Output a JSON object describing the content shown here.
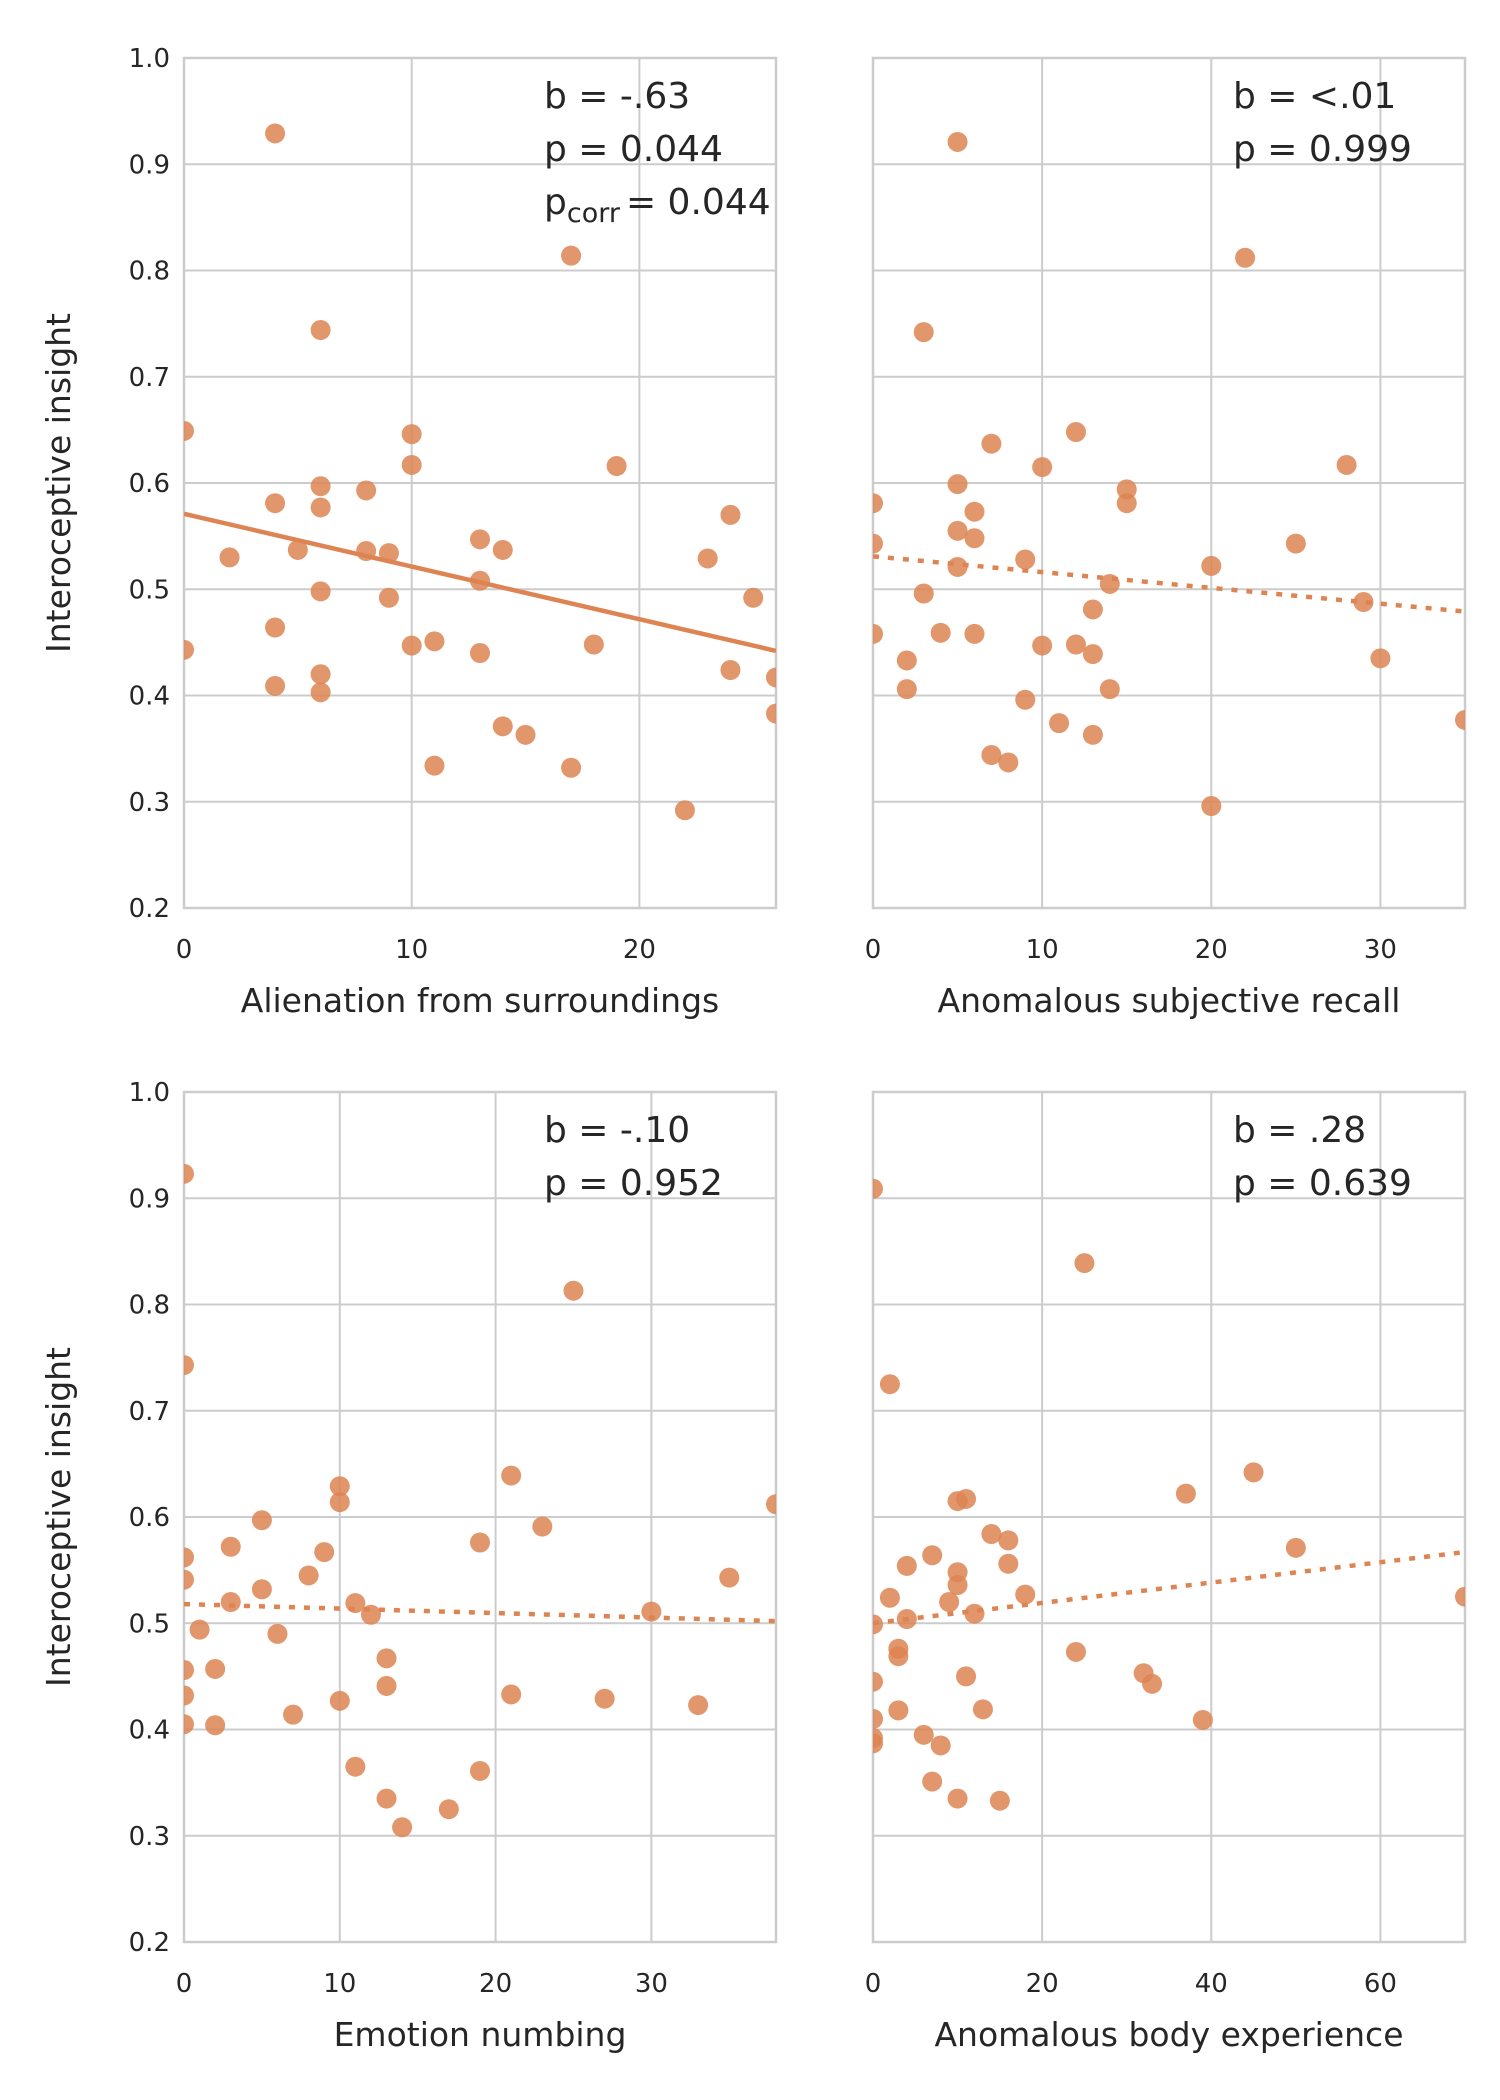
{
  "chart_data": [
    {
      "type": "scatter",
      "xlabel": "Alienation from surroundings",
      "ylabel": "Interoceptive insight",
      "xlim": [
        0,
        26
      ],
      "ylim": [
        0.2,
        1.0
      ],
      "xticks": [
        "0",
        "10",
        "20"
      ],
      "yticks": [
        "0.2",
        "0.3",
        "0.4",
        "0.5",
        "0.6",
        "0.7",
        "0.8",
        "0.9",
        "1.0"
      ],
      "annotation": {
        "b": "b = -.63",
        "p": "p = 0.044",
        "pcorr_sub": "corr",
        "pcorr_val": "= 0.044"
      },
      "fit": {
        "y_at_xmin": 0.571,
        "y_at_xmax": 0.442,
        "style": "solid"
      },
      "points": [
        [
          0,
          0.649
        ],
        [
          0,
          0.443
        ],
        [
          2,
          0.53
        ],
        [
          4,
          0.929
        ],
        [
          4,
          0.581
        ],
        [
          4,
          0.464
        ],
        [
          4,
          0.409
        ],
        [
          5,
          0.537
        ],
        [
          6,
          0.744
        ],
        [
          6,
          0.597
        ],
        [
          6,
          0.577
        ],
        [
          6,
          0.498
        ],
        [
          6,
          0.42
        ],
        [
          6,
          0.403
        ],
        [
          8,
          0.593
        ],
        [
          8,
          0.536
        ],
        [
          9,
          0.534
        ],
        [
          9,
          0.492
        ],
        [
          10,
          0.646
        ],
        [
          10,
          0.617
        ],
        [
          10,
          0.447
        ],
        [
          11,
          0.451
        ],
        [
          11,
          0.334
        ],
        [
          13,
          0.547
        ],
        [
          13,
          0.508
        ],
        [
          13,
          0.44
        ],
        [
          14,
          0.537
        ],
        [
          14,
          0.371
        ],
        [
          15,
          0.363
        ],
        [
          17,
          0.814
        ],
        [
          17,
          0.332
        ],
        [
          18,
          0.448
        ],
        [
          19,
          0.616
        ],
        [
          22,
          0.292
        ],
        [
          23,
          0.529
        ],
        [
          24,
          0.57
        ],
        [
          24,
          0.424
        ],
        [
          25,
          0.492
        ],
        [
          26,
          0.417
        ],
        [
          26,
          0.383
        ]
      ]
    },
    {
      "type": "scatter",
      "xlabel": "Anomalous subjective recall",
      "ylabel": "",
      "xlim": [
        0,
        35
      ],
      "ylim": [
        0.2,
        1.0
      ],
      "xticks": [
        "0",
        "10",
        "20",
        "30"
      ],
      "yticks": [],
      "annotation": {
        "b": "b = <.01",
        "p": "p = 0.999"
      },
      "fit": {
        "y_at_xmin": 0.531,
        "y_at_xmax": 0.479,
        "style": "dotted"
      },
      "points": [
        [
          0,
          0.581
        ],
        [
          0,
          0.543
        ],
        [
          0,
          0.458
        ],
        [
          2,
          0.433
        ],
        [
          2,
          0.406
        ],
        [
          3,
          0.742
        ],
        [
          3,
          0.496
        ],
        [
          4,
          0.459
        ],
        [
          5,
          0.921
        ],
        [
          5,
          0.599
        ],
        [
          5,
          0.555
        ],
        [
          5,
          0.521
        ],
        [
          6,
          0.573
        ],
        [
          6,
          0.548
        ],
        [
          6,
          0.458
        ],
        [
          7,
          0.637
        ],
        [
          7,
          0.344
        ],
        [
          8,
          0.337
        ],
        [
          9,
          0.528
        ],
        [
          9,
          0.396
        ],
        [
          10,
          0.615
        ],
        [
          10,
          0.447
        ],
        [
          11,
          0.374
        ],
        [
          12,
          0.648
        ],
        [
          12,
          0.448
        ],
        [
          13,
          0.481
        ],
        [
          13,
          0.439
        ],
        [
          13,
          0.363
        ],
        [
          14,
          0.505
        ],
        [
          14,
          0.406
        ],
        [
          15,
          0.594
        ],
        [
          15,
          0.581
        ],
        [
          20,
          0.522
        ],
        [
          20,
          0.296
        ],
        [
          22,
          0.812
        ],
        [
          25,
          0.543
        ],
        [
          28,
          0.617
        ],
        [
          29,
          0.488
        ],
        [
          30,
          0.435
        ],
        [
          35,
          0.377
        ]
      ]
    },
    {
      "type": "scatter",
      "xlabel": "Emotion numbing",
      "ylabel": "Interoceptive insight",
      "xlim": [
        0,
        38
      ],
      "ylim": [
        0.2,
        1.0
      ],
      "xticks": [
        "0",
        "10",
        "20",
        "30"
      ],
      "yticks": [
        "0.2",
        "0.3",
        "0.4",
        "0.5",
        "0.6",
        "0.7",
        "0.8",
        "0.9",
        "1.0"
      ],
      "annotation": {
        "b": "b = -.10",
        "p": "p = 0.952"
      },
      "fit": {
        "y_at_xmin": 0.518,
        "y_at_xmax": 0.502,
        "style": "dotted"
      },
      "points": [
        [
          0,
          0.923
        ],
        [
          0,
          0.743
        ],
        [
          0,
          0.562
        ],
        [
          0,
          0.541
        ],
        [
          0,
          0.456
        ],
        [
          0,
          0.432
        ],
        [
          0,
          0.405
        ],
        [
          1,
          0.494
        ],
        [
          2,
          0.457
        ],
        [
          2,
          0.404
        ],
        [
          3,
          0.572
        ],
        [
          3,
          0.52
        ],
        [
          5,
          0.597
        ],
        [
          5,
          0.532
        ],
        [
          6,
          0.49
        ],
        [
          7,
          0.414
        ],
        [
          8,
          0.545
        ],
        [
          9,
          0.567
        ],
        [
          10,
          0.629
        ],
        [
          10,
          0.614
        ],
        [
          10,
          0.427
        ],
        [
          11,
          0.519
        ],
        [
          11,
          0.365
        ],
        [
          12,
          0.508
        ],
        [
          13,
          0.467
        ],
        [
          13,
          0.441
        ],
        [
          13,
          0.335
        ],
        [
          14,
          0.308
        ],
        [
          17,
          0.325
        ],
        [
          19,
          0.576
        ],
        [
          19,
          0.361
        ],
        [
          21,
          0.639
        ],
        [
          21,
          0.433
        ],
        [
          23,
          0.591
        ],
        [
          25,
          0.813
        ],
        [
          27,
          0.429
        ],
        [
          30,
          0.511
        ],
        [
          33,
          0.423
        ],
        [
          35,
          0.543
        ],
        [
          38,
          0.612
        ]
      ]
    },
    {
      "type": "scatter",
      "xlabel": "Anomalous body experience",
      "ylabel": "",
      "xlim": [
        0,
        70
      ],
      "ylim": [
        0.2,
        1.0
      ],
      "xticks": [
        "0",
        "20",
        "40",
        "60"
      ],
      "yticks": [],
      "annotation": {
        "b": "b = .28",
        "p": "p = 0.639"
      },
      "fit": {
        "y_at_xmin": 0.5,
        "y_at_xmax": 0.567,
        "style": "dotted"
      },
      "points": [
        [
          0,
          0.909
        ],
        [
          0,
          0.499
        ],
        [
          0,
          0.445
        ],
        [
          0,
          0.41
        ],
        [
          0,
          0.392
        ],
        [
          0,
          0.387
        ],
        [
          2,
          0.725
        ],
        [
          2,
          0.524
        ],
        [
          3,
          0.476
        ],
        [
          3,
          0.469
        ],
        [
          3,
          0.418
        ],
        [
          4,
          0.554
        ],
        [
          4,
          0.504
        ],
        [
          6,
          0.395
        ],
        [
          7,
          0.564
        ],
        [
          7,
          0.351
        ],
        [
          8,
          0.385
        ],
        [
          9,
          0.52
        ],
        [
          10,
          0.548
        ],
        [
          10,
          0.536
        ],
        [
          10,
          0.615
        ],
        [
          10,
          0.335
        ],
        [
          11,
          0.617
        ],
        [
          11,
          0.45
        ],
        [
          12,
          0.509
        ],
        [
          13,
          0.419
        ],
        [
          14,
          0.584
        ],
        [
          15,
          0.333
        ],
        [
          16,
          0.578
        ],
        [
          16,
          0.556
        ],
        [
          18,
          0.527
        ],
        [
          24,
          0.473
        ],
        [
          25,
          0.839
        ],
        [
          32,
          0.453
        ],
        [
          33,
          0.443
        ],
        [
          37,
          0.622
        ],
        [
          39,
          0.409
        ],
        [
          45,
          0.642
        ],
        [
          50,
          0.571
        ],
        [
          70,
          0.525
        ]
      ]
    }
  ],
  "colors": {
    "marker": "#dd8452",
    "fit": "#dd8452",
    "grid": "#cccccc",
    "frame": "#cccccc",
    "text": "#262626"
  }
}
